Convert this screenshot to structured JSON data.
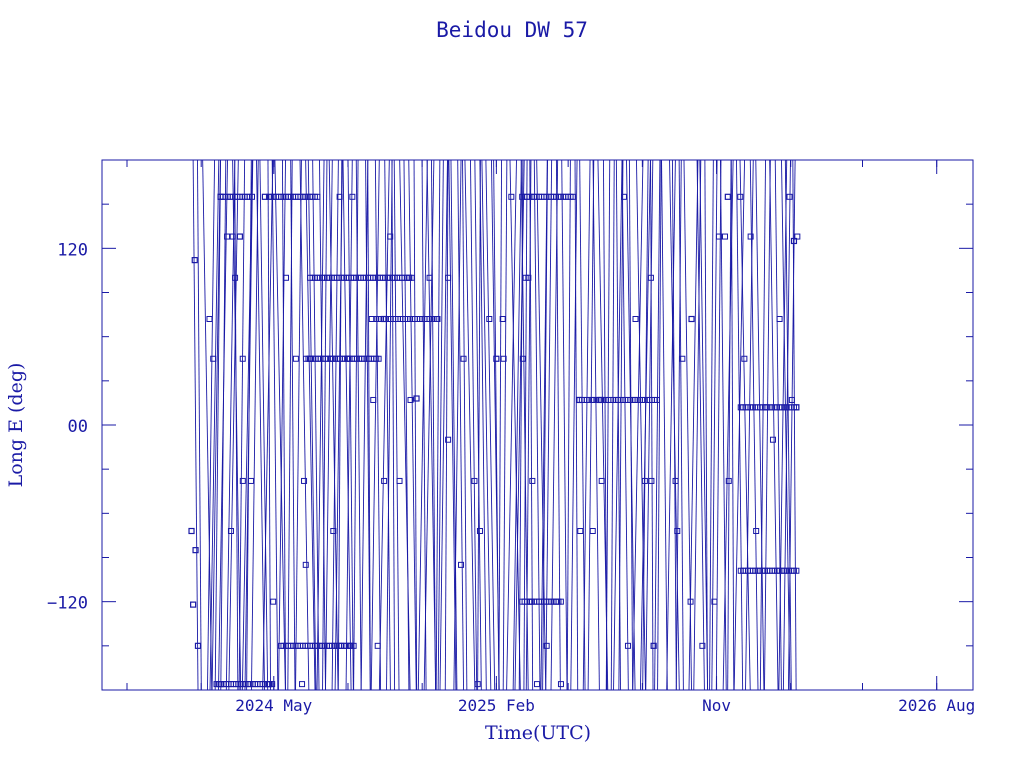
{
  "chart_data": {
    "type": "line",
    "title": "Beidou DW 57",
    "xlabel": "Time(UTC)",
    "ylabel": "Long E (deg)",
    "xlim": [
      "2023-10-01",
      "2026-09-15"
    ],
    "ylim": [
      -180,
      180
    ],
    "x_ticks": [
      {
        "date": "2024-05-01",
        "label": "2024 May"
      },
      {
        "date": "2025-02-01",
        "label": "2025 Feb"
      },
      {
        "date": "2025-11-01",
        "label": "Nov"
      },
      {
        "date": "2026-08-01",
        "label": "2026 Aug"
      }
    ],
    "y_ticks": [
      {
        "value": 120,
        "label": "120"
      },
      {
        "value": 0,
        "label": "00"
      },
      {
        "value": -120,
        "label": "−120"
      }
    ],
    "grid": false,
    "colors": {
      "line": "#1a1aa6",
      "marker": "#1a1aa6",
      "axis": "#1a1aa6"
    },
    "series": [
      {
        "data_start": "2024-01-22",
        "data_end": "2026-02-08",
        "marker": "square",
        "sample_points": [
          {
            "x": "2024-01-20",
            "y": -72
          },
          {
            "x": "2024-01-22",
            "y": -122
          },
          {
            "x": "2024-01-24",
            "y": 112
          },
          {
            "x": "2024-01-25",
            "y": -85
          },
          {
            "x": "2024-01-28",
            "y": -150
          },
          {
            "x": "2024-02-25",
            "y": -176
          },
          {
            "x": "2024-02-25",
            "y": 155
          },
          {
            "x": "2024-03-20",
            "y": 128
          },
          {
            "x": "2024-04-20",
            "y": 155
          },
          {
            "x": "2024-04-25",
            "y": -176
          },
          {
            "x": "2024-06-15",
            "y": 45
          },
          {
            "x": "2024-08-01",
            "y": 45
          },
          {
            "x": "2024-09-15",
            "y": 72
          },
          {
            "x": "2024-10-25",
            "y": 18
          },
          {
            "x": "2025-02-01",
            "y": 45
          },
          {
            "x": "2025-03-15",
            "y": -120
          },
          {
            "x": "2025-05-15",
            "y": 17
          },
          {
            "x": "2025-06-10",
            "y": 17
          },
          {
            "x": "2025-08-15",
            "y": -150
          },
          {
            "x": "2025-10-01",
            "y": 72
          },
          {
            "x": "2025-11-15",
            "y": 155
          },
          {
            "x": "2026-01-01",
            "y": 12
          },
          {
            "x": "2026-02-05",
            "y": 125
          },
          {
            "x": "2026-02-08",
            "y": 12
          }
        ]
      }
    ]
  }
}
